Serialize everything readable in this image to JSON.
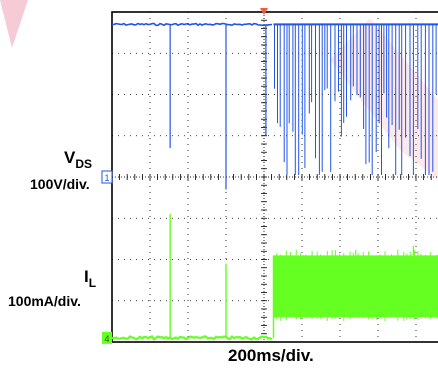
{
  "chart_data": {
    "type": "line",
    "title": "",
    "xlabel": "200ms/div.",
    "grid": true,
    "grid_divisions": {
      "x": 8,
      "y": 8
    },
    "colors": {
      "vds": "#2255e6",
      "il": "#66ff22",
      "grid": "#000000",
      "watermark": "#e86a8a"
    },
    "trigger_marker_color": "#e8603c",
    "channels": [
      {
        "name": "V",
        "subscript": "DS",
        "scale": "100V/div.",
        "marker": "1",
        "baseline_div": 4,
        "high_level_div": 7.7,
        "stable_until_div": 4.25,
        "glitch_positions_div": [
          1.53,
          3.0,
          4.05
        ],
        "glitch_depth_div": [
          3.0,
          4.0,
          2.7
        ]
      },
      {
        "name": "I",
        "subscript": "L",
        "scale": "100mA/div.",
        "marker": "4",
        "baseline_div": 0,
        "low_level_div": 0.1,
        "spike_positions_div": [
          1.53,
          3.0
        ],
        "spike_height_div": [
          3.0,
          1.8
        ],
        "burst_start_div": 4.25,
        "burst_band_div": [
          0.6,
          2.1
        ]
      }
    ]
  },
  "labels": {
    "vds_name": "V",
    "vds_sub": "DS",
    "vds_scale": "100V/div.",
    "il_name": "I",
    "il_sub": "L",
    "il_scale": "100mA/div.",
    "time_scale": "200ms/div."
  }
}
